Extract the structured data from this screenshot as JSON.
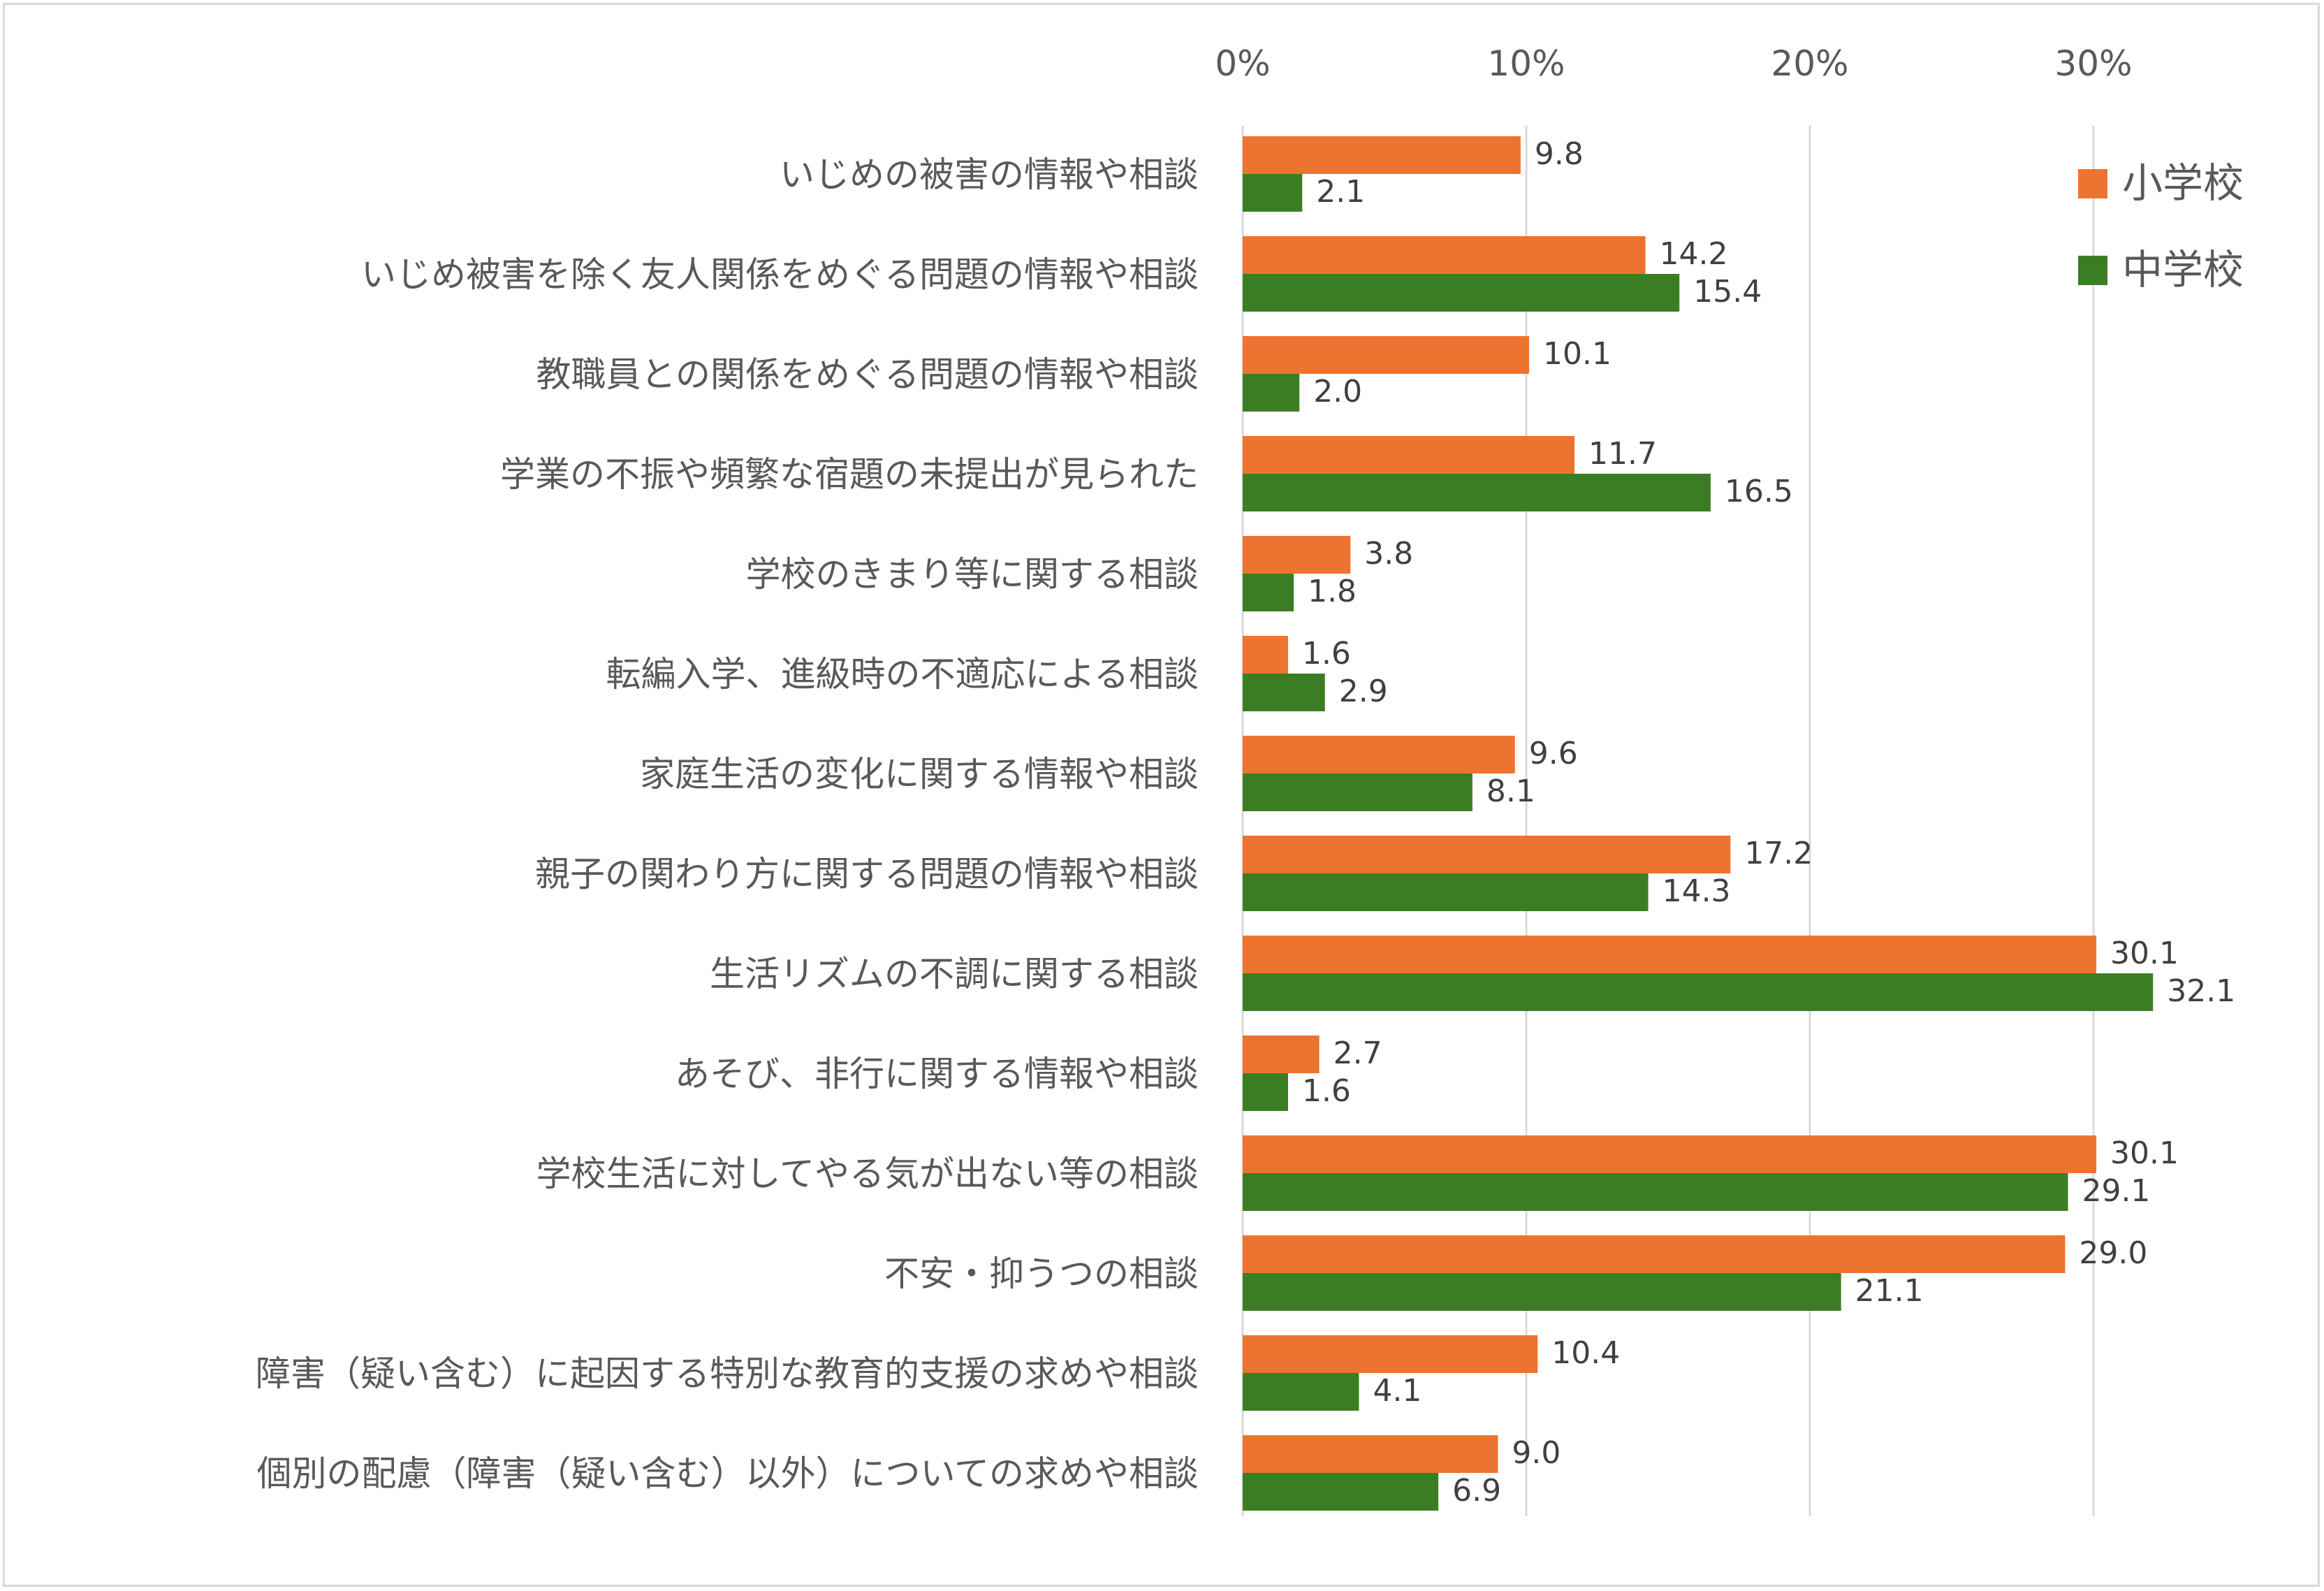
{
  "chart_data": {
    "type": "bar",
    "orientation": "horizontal",
    "x_axis_position": "top",
    "xlim": [
      0,
      35
    ],
    "x_ticks": [
      0,
      10,
      20,
      30
    ],
    "x_tick_labels": [
      "0%",
      "10%",
      "20%",
      "30%"
    ],
    "grid": true,
    "legend_position": "top-right",
    "categories": [
      "いじめの被害の情報や相談",
      "いじめ被害を除く友人関係をめぐる問題の情報や相談",
      "教職員との関係をめぐる問題の情報や相談",
      "学業の不振や頻繁な宿題の未提出が見られた",
      "学校のきまり等に関する相談",
      "転編入学、進級時の不適応による相談",
      "家庭生活の変化に関する情報や相談",
      "親子の関わり方に関する問題の情報や相談",
      "生活リズムの不調に関する相談",
      "あそび、非行に関する情報や相談",
      "学校生活に対してやる気が出ない等の相談",
      "不安・抑うつの相談",
      "障害（疑い含む）に起因する特別な教育的支援の求めや相談",
      "個別の配慮（障害（疑い含む）以外）についての求めや相談"
    ],
    "series": [
      {
        "name": "小学校",
        "color": "#ed7331",
        "values": [
          9.8,
          14.2,
          10.1,
          11.7,
          3.8,
          1.6,
          9.6,
          17.2,
          30.1,
          2.7,
          30.1,
          29.0,
          10.4,
          9.0
        ],
        "labels": [
          "9.8",
          "14.2",
          "10.1",
          "11.7",
          "3.8",
          "1.6",
          "9.6",
          "17.2",
          "30.1",
          "2.7",
          "30.1",
          "29.0",
          "10.4",
          "9.0"
        ]
      },
      {
        "name": "中学校",
        "color": "#3b7d23",
        "values": [
          2.1,
          15.4,
          2.0,
          16.5,
          1.8,
          2.9,
          8.1,
          14.3,
          32.1,
          1.6,
          29.1,
          21.1,
          4.1,
          6.9
        ],
        "labels": [
          "2.1",
          "15.4",
          "2.0",
          "16.5",
          "1.8",
          "2.9",
          "8.1",
          "14.3",
          "32.1",
          "1.6",
          "29.1",
          "21.1",
          "4.1",
          "6.9"
        ]
      }
    ],
    "grid_color": "#d9d9d9"
  }
}
